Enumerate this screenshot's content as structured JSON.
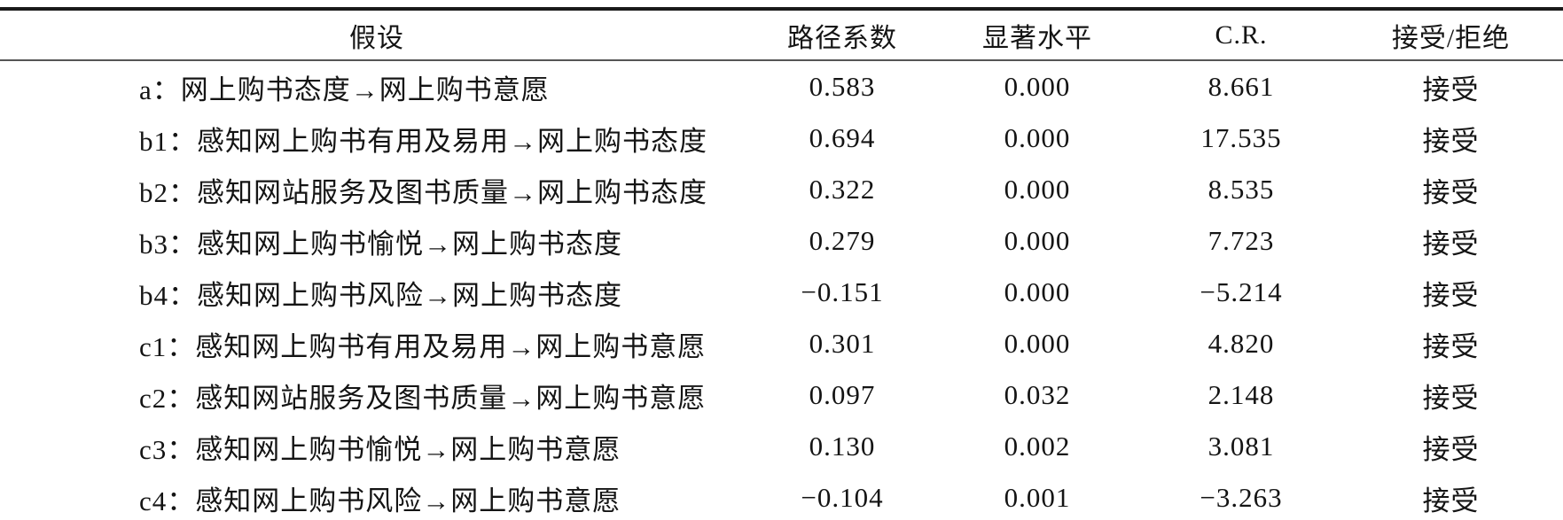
{
  "page": {
    "background_color": "#ffffff",
    "text_color": "#141414",
    "rule_color": "#1a1a1a",
    "header_rule_color": "#555555"
  },
  "table": {
    "columns": [
      {
        "key": "hypothesis",
        "label": "假设"
      },
      {
        "key": "path_coefficient",
        "label": "路径系数"
      },
      {
        "key": "significance",
        "label": "显著水平"
      },
      {
        "key": "cr",
        "label": "C.R."
      },
      {
        "key": "decision",
        "label": "接受/拒绝"
      }
    ],
    "rows": [
      {
        "hypothesis": "a：网上购书态度→网上购书意愿",
        "path_coefficient": "0.583",
        "significance": "0.000",
        "cr": "8.661",
        "decision": "接受"
      },
      {
        "hypothesis": "b1：感知网上购书有用及易用→网上购书态度",
        "path_coefficient": "0.694",
        "significance": "0.000",
        "cr": "17.535",
        "decision": "接受"
      },
      {
        "hypothesis": "b2：感知网站服务及图书质量→网上购书态度",
        "path_coefficient": "0.322",
        "significance": "0.000",
        "cr": "8.535",
        "decision": "接受"
      },
      {
        "hypothesis": "b3：感知网上购书愉悦→网上购书态度",
        "path_coefficient": "0.279",
        "significance": "0.000",
        "cr": "7.723",
        "decision": "接受"
      },
      {
        "hypothesis": "b4：感知网上购书风险→网上购书态度",
        "path_coefficient": "−0.151",
        "significance": "0.000",
        "cr": "−5.214",
        "decision": "接受"
      },
      {
        "hypothesis": "c1：感知网上购书有用及易用→网上购书意愿",
        "path_coefficient": "0.301",
        "significance": "0.000",
        "cr": "4.820",
        "decision": "接受"
      },
      {
        "hypothesis": "c2：感知网站服务及图书质量→网上购书意愿",
        "path_coefficient": "0.097",
        "significance": "0.032",
        "cr": "2.148",
        "decision": "接受"
      },
      {
        "hypothesis": "c3：感知网上购书愉悦→网上购书意愿",
        "path_coefficient": "0.130",
        "significance": "0.002",
        "cr": "3.081",
        "decision": "接受"
      },
      {
        "hypothesis": "c4：感知网上购书风险→网上购书意愿",
        "path_coefficient": "−0.104",
        "significance": "0.001",
        "cr": "−3.263",
        "decision": "接受"
      }
    ]
  }
}
